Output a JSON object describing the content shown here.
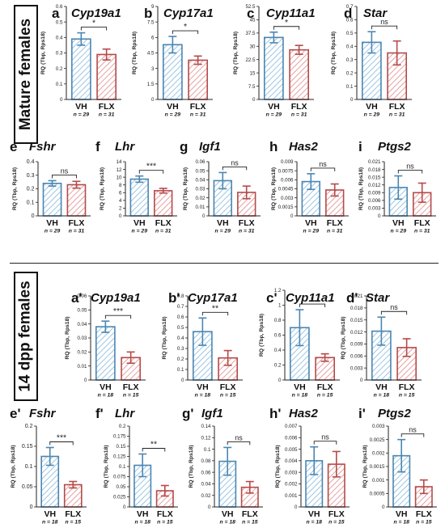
{
  "sections": [
    {
      "label": "Mature females"
    },
    {
      "label": "14 dpp females"
    }
  ],
  "colors": {
    "vh": "#4b86b2",
    "vh_hatch": "#9cc6e3",
    "flx": "#b54a4a",
    "flx_hatch": "#e6a1a1",
    "axis": "#222222"
  },
  "chart_data": [
    {
      "panel": "a",
      "title": "Cyp19a1",
      "type": "bar",
      "ylabel": "RQ (Tbp, Rps18)",
      "categories": [
        "VH",
        "FLX"
      ],
      "n_labels": [
        "n = 29",
        "n = 31"
      ],
      "values": [
        0.39,
        0.29
      ],
      "errors": [
        0.04,
        0.035
      ],
      "ylim": [
        0,
        0.6
      ],
      "yticks": [
        "0",
        "0.1",
        "0.2",
        "0.3",
        "0.4",
        "0.5",
        "0.6"
      ],
      "significance": "*"
    },
    {
      "panel": "b",
      "title": "Cyp17a1",
      "type": "bar",
      "ylabel": "RQ (Tbp, Rps18)",
      "categories": [
        "VH",
        "FLX"
      ],
      "n_labels": [
        "n = 29",
        "n = 31"
      ],
      "values": [
        5.3,
        3.8
      ],
      "errors": [
        0.8,
        0.4
      ],
      "ylim": [
        0,
        9
      ],
      "yticks": [
        "0",
        "1.5",
        "3",
        "4.5",
        "6",
        "7.5",
        "9"
      ],
      "significance": "*"
    },
    {
      "panel": "c",
      "title": "Cyp11a1",
      "type": "bar",
      "ylabel": "RQ (Tbp, Rps18)",
      "categories": [
        "VH",
        "FLX"
      ],
      "n_labels": [
        "n = 29",
        "n = 31"
      ],
      "values": [
        35,
        28
      ],
      "errors": [
        3,
        2.5
      ],
      "ylim": [
        0,
        52.5
      ],
      "yticks": [
        "0",
        "7.5",
        "15",
        "22.5",
        "30",
        "37.5",
        "45",
        "52.5"
      ],
      "significance": "*"
    },
    {
      "panel": "d",
      "title": "Star",
      "type": "bar",
      "ylabel": "RQ (Tbp, Rps18)",
      "categories": [
        "VH",
        "FLX"
      ],
      "n_labels": [
        "n = 29",
        "n = 31"
      ],
      "values": [
        0.43,
        0.35
      ],
      "errors": [
        0.08,
        0.09
      ],
      "ylim": [
        0,
        0.7
      ],
      "yticks": [
        "0",
        "0.1",
        "0.2",
        "0.3",
        "0.4",
        "0.5",
        "0.6",
        "0.7"
      ],
      "significance": "ns"
    },
    {
      "panel": "e",
      "title": "Fshr",
      "type": "bar",
      "ylabel": "RQ (Tbp, Rps18)",
      "categories": [
        "VH",
        "FLX"
      ],
      "n_labels": [
        "n = 29",
        "n = 31"
      ],
      "values": [
        0.24,
        0.23
      ],
      "errors": [
        0.02,
        0.025
      ],
      "ylim": [
        0,
        0.4
      ],
      "yticks": [
        "0",
        "0.1",
        "0.2",
        "0.3",
        "0.4"
      ],
      "significance": "ns"
    },
    {
      "panel": "f",
      "title": "Lhr",
      "type": "bar",
      "ylabel": "RQ (Tbp, Rps18)",
      "categories": [
        "VH",
        "FLX"
      ],
      "n_labels": [
        "n = 29",
        "n = 31"
      ],
      "values": [
        9.5,
        6.5
      ],
      "errors": [
        0.8,
        0.6
      ],
      "ylim": [
        0,
        14
      ],
      "yticks": [
        "0",
        "2",
        "4",
        "6",
        "8",
        "10",
        "12",
        "14"
      ],
      "significance": "***"
    },
    {
      "panel": "g",
      "title": "Igf1",
      "type": "bar",
      "ylabel": "RQ (Tbp, Rps18)",
      "categories": [
        "VH",
        "FLX"
      ],
      "n_labels": [
        "n = 29",
        "n = 31"
      ],
      "values": [
        0.039,
        0.026
      ],
      "errors": [
        0.009,
        0.007
      ],
      "ylim": [
        0,
        0.06
      ],
      "yticks": [
        "0",
        "0.01",
        "0.02",
        "0.03",
        "0.04",
        "0.05",
        "0.06"
      ],
      "significance": "ns"
    },
    {
      "panel": "h",
      "title": "Has2",
      "type": "bar",
      "ylabel": "RQ (Tbp, Rps18)",
      "categories": [
        "VH",
        "FLX"
      ],
      "n_labels": [
        "n = 29",
        "n = 31"
      ],
      "values": [
        0.0057,
        0.0043
      ],
      "errors": [
        0.0013,
        0.001
      ],
      "ylim": [
        0,
        0.009
      ],
      "yticks": [
        "0",
        "0.0015",
        "0.003",
        "0.0045",
        "0.006",
        "0.0075",
        "0.009"
      ],
      "significance": "ns"
    },
    {
      "panel": "i",
      "title": "Ptgs2",
      "type": "bar",
      "ylabel": "RQ (Tbp, Rps18)",
      "categories": [
        "VH",
        "FLX"
      ],
      "n_labels": [
        "n = 29",
        "n = 31"
      ],
      "values": [
        0.011,
        0.009
      ],
      "errors": [
        0.0045,
        0.0037
      ],
      "ylim": [
        0,
        0.021
      ],
      "yticks": [
        "0",
        "0.003",
        "0.006",
        "0.009",
        "0.012",
        "0.015",
        "0.018",
        "0.021"
      ],
      "significance": "ns"
    },
    {
      "panel": "a'",
      "title": "Cyp19a1",
      "type": "bar",
      "ylabel": "RQ (Tbp, Rps18)",
      "categories": [
        "VH",
        "FLX"
      ],
      "n_labels": [
        "n = 18",
        "n = 15"
      ],
      "values": [
        0.038,
        0.016
      ],
      "errors": [
        0.004,
        0.004
      ],
      "ylim": [
        0,
        0.06
      ],
      "yticks": [
        "0",
        "0.01",
        "0.02",
        "0.03",
        "0.04",
        "0.05",
        "0.06"
      ],
      "significance": "***"
    },
    {
      "panel": "b'",
      "title": "Cyp17a1",
      "type": "bar",
      "ylabel": "RQ (Tbp, Rps18)",
      "categories": [
        "VH",
        "FLX"
      ],
      "n_labels": [
        "n = 18",
        "n = 15"
      ],
      "values": [
        0.46,
        0.21
      ],
      "errors": [
        0.13,
        0.07
      ],
      "ylim": [
        0,
        0.8
      ],
      "yticks": [
        "0",
        "0.1",
        "0.2",
        "0.3",
        "0.4",
        "0.5",
        "0.6",
        "0.7",
        "0.8"
      ],
      "significance": "**"
    },
    {
      "panel": "c'",
      "title": "Cyp11a1",
      "type": "bar",
      "ylabel": "RQ (Tbp, Rps18)",
      "categories": [
        "VH",
        "FLX"
      ],
      "n_labels": [
        "n = 18",
        "n = 15"
      ],
      "values": [
        0.7,
        0.3
      ],
      "errors": [
        0.24,
        0.05
      ],
      "ylim": [
        0,
        1.2
      ],
      "yticks": [
        "0",
        "0.2",
        "0.4",
        "0.6",
        "0.8",
        "1",
        "1.2"
      ],
      "significance": "*"
    },
    {
      "panel": "d'",
      "title": "Star",
      "type": "bar",
      "ylabel": "RQ (Tbp, Rps18)",
      "categories": [
        "VH",
        "FLX"
      ],
      "n_labels": [
        "n = 18",
        "n = 15"
      ],
      "values": [
        0.0122,
        0.0081
      ],
      "errors": [
        0.0035,
        0.0022
      ],
      "ylim": [
        0,
        0.021
      ],
      "yticks": [
        "0",
        "0.003",
        "0.006",
        "0.009",
        "0.012",
        "0.015",
        "0.018",
        "0.021"
      ],
      "significance": "ns"
    },
    {
      "panel": "e'",
      "title": "Fshr",
      "type": "bar",
      "ylabel": "RQ (Tbp, Rps18)",
      "categories": [
        "VH",
        "FLX"
      ],
      "n_labels": [
        "n = 18",
        "n = 15"
      ],
      "values": [
        0.125,
        0.055
      ],
      "errors": [
        0.022,
        0.008
      ],
      "ylim": [
        0,
        0.2
      ],
      "yticks": [
        "0",
        "0.05",
        "0.1",
        "0.15",
        "0.2"
      ],
      "significance": "***"
    },
    {
      "panel": "f'",
      "title": "Lhr",
      "type": "bar",
      "ylabel": "RQ (Tbp, Rps18)",
      "categories": [
        "VH",
        "FLX"
      ],
      "n_labels": [
        "n = 18",
        "n = 15"
      ],
      "values": [
        0.103,
        0.04
      ],
      "errors": [
        0.028,
        0.013
      ],
      "ylim": [
        0,
        0.2
      ],
      "yticks": [
        "0",
        "0.025",
        "0.05",
        "0.075",
        "0.1",
        "0.125",
        "0.15",
        "0.175",
        "0.2"
      ],
      "significance": "**"
    },
    {
      "panel": "g'",
      "title": "Igf1",
      "type": "bar",
      "ylabel": "RQ (Tbp, Rps18)",
      "categories": [
        "VH",
        "FLX"
      ],
      "n_labels": [
        "n = 18",
        "n = 15"
      ],
      "values": [
        0.079,
        0.034
      ],
      "errors": [
        0.024,
        0.01
      ],
      "ylim": [
        0,
        0.14
      ],
      "yticks": [
        "0",
        "0.02",
        "0.04",
        "0.06",
        "0.08",
        "0.1",
        "0.12",
        "0.14"
      ],
      "significance": "ns"
    },
    {
      "panel": "h'",
      "title": "Has2",
      "type": "bar",
      "ylabel": "RQ (Tbp, Rps18)",
      "categories": [
        "VH",
        "FLX"
      ],
      "n_labels": [
        "n = 18",
        "n = 15"
      ],
      "values": [
        0.004,
        0.0037
      ],
      "errors": [
        0.0012,
        0.0011
      ],
      "ylim": [
        0,
        0.007
      ],
      "yticks": [
        "0",
        "0.001",
        "0.002",
        "0.003",
        "0.004",
        "0.005",
        "0.006",
        "0.007"
      ],
      "significance": "ns"
    },
    {
      "panel": "i'",
      "title": "Ptgs2",
      "type": "bar",
      "ylabel": "RQ (Tbp, Rps18)",
      "categories": [
        "VH",
        "FLX"
      ],
      "n_labels": [
        "n = 18",
        "n = 15"
      ],
      "values": [
        0.0019,
        0.00075
      ],
      "errors": [
        0.0006,
        0.00025
      ],
      "ylim": [
        0,
        0.003
      ],
      "yticks": [
        "0",
        "0.0005",
        "0.001",
        "0.0015",
        "0.002",
        "0.0025",
        "0.003"
      ],
      "significance": "ns"
    }
  ]
}
